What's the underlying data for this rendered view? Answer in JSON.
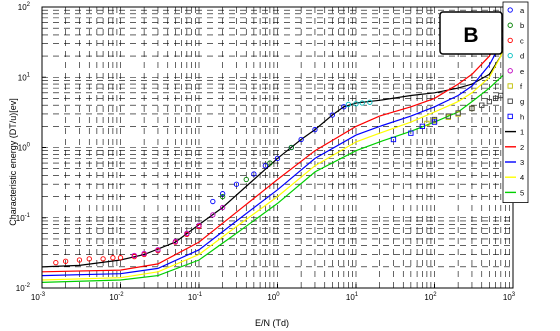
{
  "chart_data": {
    "type": "scatter",
    "panel_label": "B",
    "xlabel": "E/N (Td)",
    "ylabel": "Characteristic energy (DT/u)[ev]",
    "x_scale": "log",
    "y_scale": "log",
    "xlim": [
      0.001,
      1000
    ],
    "ylim": [
      0.01,
      100
    ],
    "grid": true,
    "legend_position": "top-right, outside plot",
    "x_ticks": [
      {
        "base": "10",
        "exp": "-3",
        "value": 0.001
      },
      {
        "base": "10",
        "exp": "-2",
        "value": 0.01
      },
      {
        "base": "10",
        "exp": "-1",
        "value": 0.1
      },
      {
        "base": "10",
        "exp": "0",
        "value": 1
      },
      {
        "base": "10",
        "exp": "1",
        "value": 10
      },
      {
        "base": "10",
        "exp": "2",
        "value": 100
      },
      {
        "base": "10",
        "exp": "3",
        "value": 1000
      }
    ],
    "y_ticks": [
      {
        "base": "10",
        "exp": "-2",
        "value": 0.01
      },
      {
        "base": "10",
        "exp": "-1",
        "value": 0.1
      },
      {
        "base": "10",
        "exp": "0",
        "value": 1
      },
      {
        "base": "10",
        "exp": "1",
        "value": 10
      },
      {
        "base": "10",
        "exp": "2",
        "value": 100
      }
    ],
    "series": [
      {
        "name": "a",
        "kind": "marker",
        "marker": "circle",
        "color": "#0000ff",
        "points": [
          [
            0.15,
            0.17
          ],
          [
            0.2,
            0.22
          ],
          [
            0.3,
            0.3
          ],
          [
            0.5,
            0.42
          ],
          [
            0.7,
            0.55
          ],
          [
            1,
            0.7
          ],
          [
            1.5,
            1.0
          ],
          [
            2,
            1.3
          ],
          [
            3,
            1.8
          ],
          [
            5,
            2.9
          ],
          [
            7,
            3.8
          ]
        ]
      },
      {
        "name": "b",
        "kind": "marker",
        "marker": "circle",
        "color": "#008000",
        "points": [
          [
            0.2,
            0.2
          ],
          [
            0.4,
            0.35
          ],
          [
            0.8,
            0.6
          ],
          [
            1.5,
            1.0
          ]
        ]
      },
      {
        "name": "c",
        "kind": "marker",
        "marker": "circle",
        "color": "#ff0000",
        "points": [
          [
            0.0015,
            0.023
          ],
          [
            0.002,
            0.024
          ],
          [
            0.003,
            0.025
          ],
          [
            0.004,
            0.026
          ],
          [
            0.006,
            0.026
          ],
          [
            0.008,
            0.027
          ],
          [
            0.01,
            0.027
          ],
          [
            0.015,
            0.028
          ],
          [
            0.02,
            0.03
          ],
          [
            0.03,
            0.034
          ],
          [
            0.05,
            0.045
          ],
          [
            0.07,
            0.058
          ],
          [
            0.1,
            0.075
          ]
        ]
      },
      {
        "name": "d",
        "kind": "marker",
        "marker": "circle",
        "color": "#00bfbf",
        "points": [
          [
            8,
            4.1
          ],
          [
            10,
            4.2
          ],
          [
            12,
            4.3
          ],
          [
            15,
            4.4
          ]
        ]
      },
      {
        "name": "e",
        "kind": "marker",
        "marker": "circle",
        "color": "#bf00bf",
        "points": [
          [
            0.015,
            0.029
          ],
          [
            0.02,
            0.031
          ],
          [
            0.03,
            0.035
          ],
          [
            0.05,
            0.046
          ],
          [
            0.07,
            0.06
          ],
          [
            0.1,
            0.078
          ],
          [
            0.15,
            0.11
          ],
          [
            0.2,
            0.14
          ]
        ]
      },
      {
        "name": "f",
        "kind": "marker",
        "marker": "square",
        "color": "#bfbf00",
        "points": [
          [
            80,
            2.2
          ],
          [
            100,
            2.4
          ],
          [
            150,
            2.7
          ],
          [
            200,
            3.0
          ],
          [
            300,
            3.6
          ]
        ]
      },
      {
        "name": "g",
        "kind": "marker",
        "marker": "square",
        "color": "#404040",
        "points": [
          [
            100,
            2.5
          ],
          [
            150,
            2.8
          ],
          [
            200,
            3.1
          ],
          [
            300,
            3.6
          ],
          [
            400,
            4.0
          ],
          [
            500,
            4.5
          ],
          [
            600,
            5.0
          ],
          [
            700,
            5.5
          ],
          [
            800,
            6.0
          ],
          [
            1000,
            6.8
          ]
        ]
      },
      {
        "name": "h",
        "kind": "marker",
        "marker": "square",
        "color": "#0000ff",
        "points": [
          [
            30,
            1.3
          ],
          [
            50,
            1.6
          ],
          [
            70,
            2.0
          ],
          [
            100,
            2.3
          ]
        ]
      },
      {
        "name": "1",
        "kind": "line",
        "color": "#000000",
        "points": [
          [
            0.001,
            0.02
          ],
          [
            0.003,
            0.021
          ],
          [
            0.01,
            0.025
          ],
          [
            0.02,
            0.03
          ],
          [
            0.05,
            0.045
          ],
          [
            0.1,
            0.08
          ],
          [
            0.2,
            0.14
          ],
          [
            0.5,
            0.35
          ],
          [
            1,
            0.7
          ],
          [
            2,
            1.3
          ],
          [
            3,
            1.8
          ],
          [
            5,
            2.9
          ],
          [
            7,
            3.8
          ],
          [
            10,
            4.3
          ],
          [
            20,
            4.7
          ],
          [
            50,
            5.5
          ],
          [
            100,
            6.0
          ],
          [
            200,
            7.0
          ],
          [
            300,
            8.0
          ],
          [
            500,
            11
          ],
          [
            700,
            20
          ],
          [
            1000,
            90
          ]
        ]
      },
      {
        "name": "2",
        "kind": "line",
        "color": "#ff0000",
        "points": [
          [
            0.001,
            0.017
          ],
          [
            0.01,
            0.018
          ],
          [
            0.03,
            0.022
          ],
          [
            0.1,
            0.045
          ],
          [
            0.3,
            0.12
          ],
          [
            1,
            0.35
          ],
          [
            3,
            0.9
          ],
          [
            10,
            2.0
          ],
          [
            20,
            2.8
          ],
          [
            50,
            3.8
          ],
          [
            100,
            5.0
          ],
          [
            200,
            8.0
          ],
          [
            300,
            11
          ],
          [
            500,
            20
          ],
          [
            700,
            40
          ],
          [
            1000,
            90
          ]
        ]
      },
      {
        "name": "3",
        "kind": "line",
        "color": "#0000ff",
        "points": [
          [
            0.001,
            0.015
          ],
          [
            0.01,
            0.016
          ],
          [
            0.03,
            0.019
          ],
          [
            0.1,
            0.035
          ],
          [
            0.3,
            0.09
          ],
          [
            1,
            0.25
          ],
          [
            3,
            0.7
          ],
          [
            10,
            1.5
          ],
          [
            20,
            2.0
          ],
          [
            50,
            2.8
          ],
          [
            100,
            3.8
          ],
          [
            200,
            5.5
          ],
          [
            300,
            7.5
          ],
          [
            500,
            15
          ],
          [
            700,
            30
          ],
          [
            1000,
            80
          ]
        ]
      },
      {
        "name": "4",
        "kind": "line",
        "color": "#ffff00",
        "points": [
          [
            0.001,
            0.013
          ],
          [
            0.01,
            0.014
          ],
          [
            0.03,
            0.017
          ],
          [
            0.1,
            0.03
          ],
          [
            0.3,
            0.075
          ],
          [
            1,
            0.2
          ],
          [
            3,
            0.55
          ],
          [
            10,
            1.2
          ],
          [
            20,
            1.6
          ],
          [
            50,
            2.3
          ],
          [
            100,
            3.2
          ],
          [
            200,
            4.5
          ],
          [
            300,
            6.0
          ],
          [
            500,
            10
          ],
          [
            700,
            20
          ],
          [
            1000,
            60
          ]
        ]
      },
      {
        "name": "5",
        "kind": "line",
        "color": "#00d000",
        "points": [
          [
            0.001,
            0.012
          ],
          [
            0.01,
            0.013
          ],
          [
            0.03,
            0.015
          ],
          [
            0.1,
            0.025
          ],
          [
            0.3,
            0.06
          ],
          [
            1,
            0.16
          ],
          [
            3,
            0.45
          ],
          [
            10,
            0.9
          ],
          [
            20,
            1.2
          ],
          [
            50,
            1.7
          ],
          [
            100,
            2.3
          ],
          [
            200,
            3.2
          ],
          [
            300,
            4.5
          ],
          [
            500,
            7
          ],
          [
            700,
            10
          ],
          [
            1000,
            14
          ]
        ]
      }
    ]
  }
}
